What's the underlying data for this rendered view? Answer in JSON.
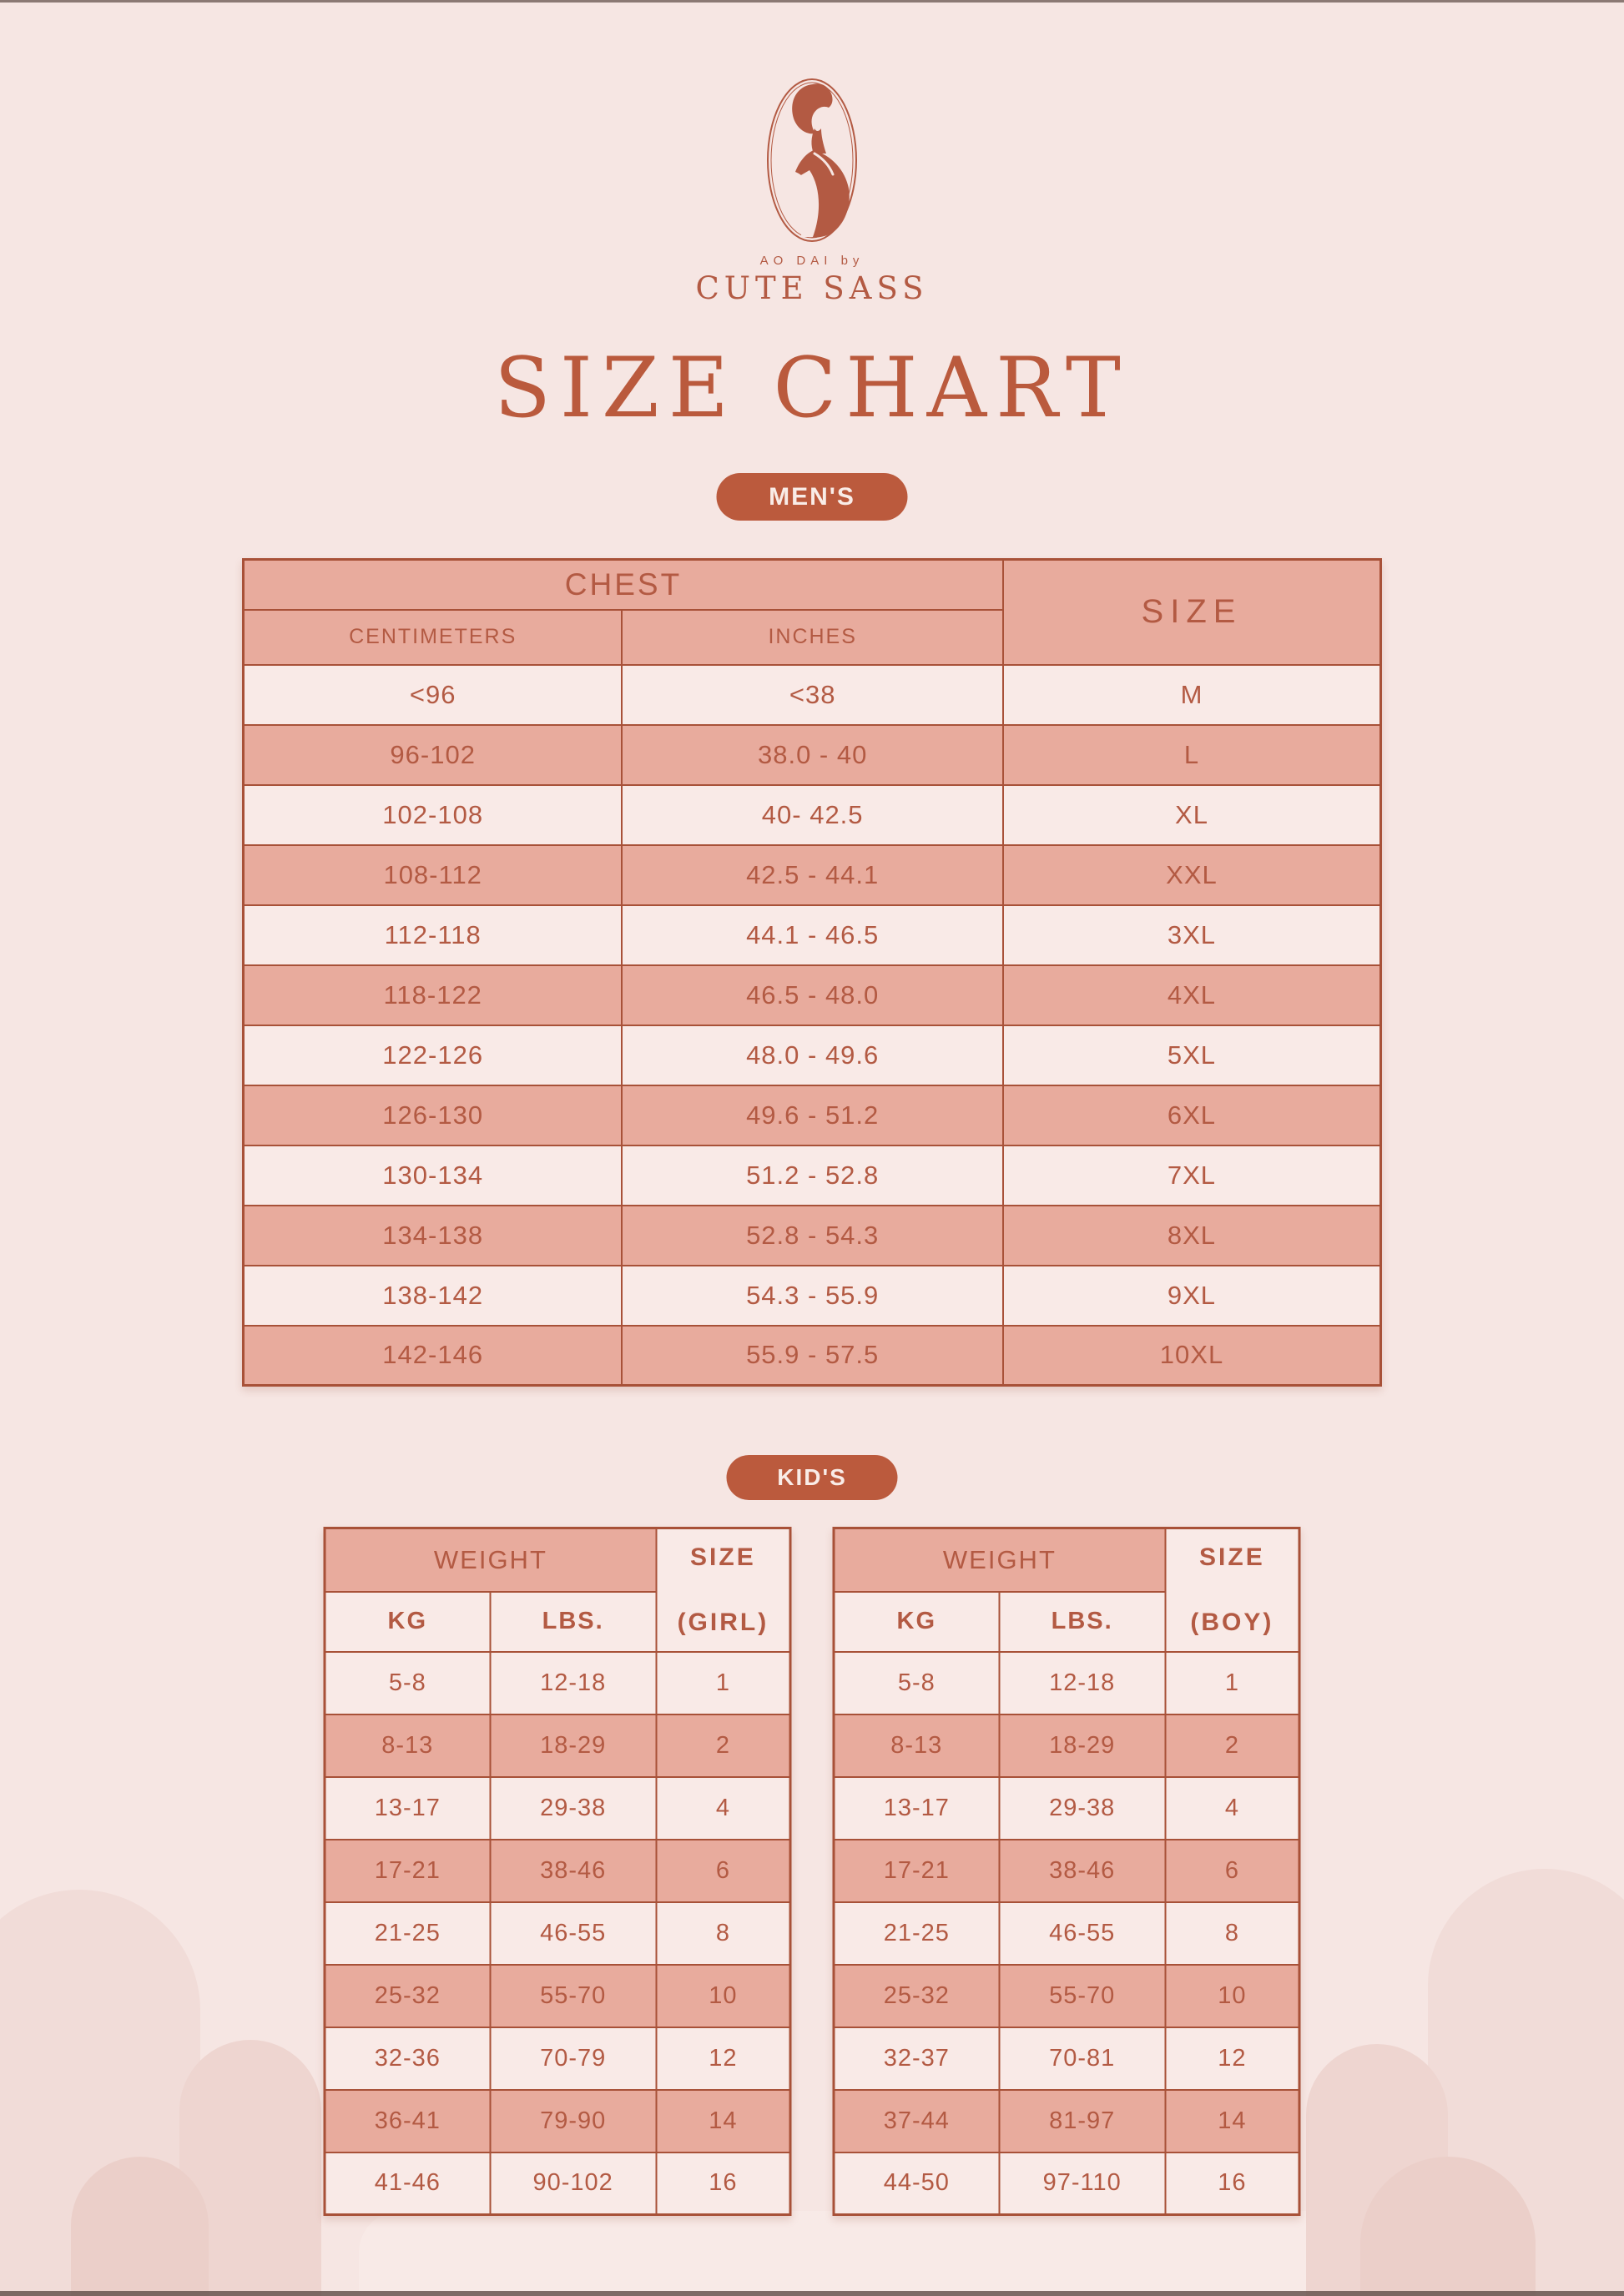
{
  "brand": {
    "logo_sub": "AO DAI by",
    "logo_name": "CUTE SASS"
  },
  "title": "SIZE CHART",
  "badges": {
    "mens": "MEN'S",
    "kids": "KID'S"
  },
  "mens_table": {
    "header_group": "CHEST",
    "header_size": "SIZE",
    "subheaders": [
      "CENTIMETERS",
      "INCHES"
    ],
    "rows": [
      [
        "<96",
        "<38",
        "M"
      ],
      [
        "96-102",
        "38.0 - 40",
        "L"
      ],
      [
        "102-108",
        "40- 42.5",
        "XL"
      ],
      [
        "108-112",
        "42.5 - 44.1",
        "XXL"
      ],
      [
        "112-118",
        "44.1 - 46.5",
        "3XL"
      ],
      [
        "118-122",
        "46.5 - 48.0",
        "4XL"
      ],
      [
        "122-126",
        "48.0 - 49.6",
        "5XL"
      ],
      [
        "126-130",
        "49.6 - 51.2",
        "6XL"
      ],
      [
        "130-134",
        "51.2 - 52.8",
        "7XL"
      ],
      [
        "134-138",
        "52.8 - 54.3",
        "8XL"
      ],
      [
        "138-142",
        "54.3 - 55.9",
        "9XL"
      ],
      [
        "142-146",
        "55.9 - 57.5",
        "10XL"
      ]
    ]
  },
  "girls_table": {
    "header_group": "WEIGHT",
    "header_size": "SIZE",
    "header_size_sub": "(GIRL)",
    "subheaders": [
      "KG",
      "LBS."
    ],
    "rows": [
      [
        "5-8",
        "12-18",
        "1"
      ],
      [
        "8-13",
        "18-29",
        "2"
      ],
      [
        "13-17",
        "29-38",
        "4"
      ],
      [
        "17-21",
        "38-46",
        "6"
      ],
      [
        "21-25",
        "46-55",
        "8"
      ],
      [
        "25-32",
        "55-70",
        "10"
      ],
      [
        "32-36",
        "70-79",
        "12"
      ],
      [
        "36-41",
        "79-90",
        "14"
      ],
      [
        "41-46",
        "90-102",
        "16"
      ]
    ]
  },
  "boys_table": {
    "header_group": "WEIGHT",
    "header_size": "SIZE",
    "header_size_sub": "(BOY)",
    "subheaders": [
      "KG",
      "LBS."
    ],
    "rows": [
      [
        "5-8",
        "12-18",
        "1"
      ],
      [
        "8-13",
        "18-29",
        "2"
      ],
      [
        "13-17",
        "29-38",
        "4"
      ],
      [
        "17-21",
        "38-46",
        "6"
      ],
      [
        "21-25",
        "46-55",
        "8"
      ],
      [
        "25-32",
        "55-70",
        "10"
      ],
      [
        "32-37",
        "70-81",
        "12"
      ],
      [
        "37-44",
        "81-97",
        "14"
      ],
      [
        "44-50",
        "97-110",
        "16"
      ]
    ]
  },
  "colors": {
    "background": "#f6e6e3",
    "salmon": "#e8ab9d",
    "light_cell": "#f9eae7",
    "line": "#a85138",
    "text": "#b35a43",
    "title": "#ba5a3d",
    "pill_bg": "#bb5a3d",
    "pill_text": "#f9ece7",
    "arch_light": "#f1dcd8",
    "arch_mid": "#eed5d0",
    "arch_dark": "#ebcfc9",
    "band": "#f8eae7",
    "edge_bar": "#67544f"
  }
}
